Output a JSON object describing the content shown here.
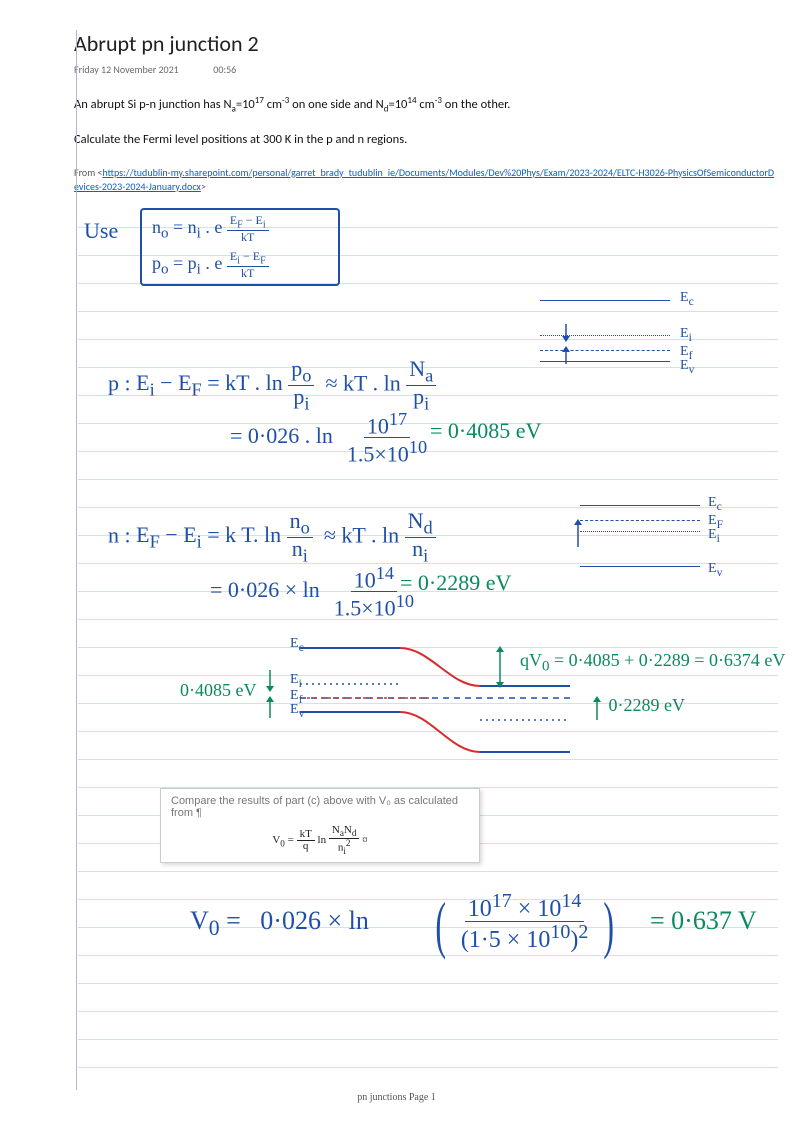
{
  "title": "Abrupt pn junction 2",
  "date": "Friday 12 November 2021",
  "time": "00:56",
  "problem_line1": "An abrupt Si p-n junction has N<sub>a</sub>=10<sup>17</sup> cm<sup>-3</sup> on one side and N<sub>d</sub>=10<sup>14</sup> cm<sup>-3</sup> on the other.",
  "problem_line2": "Calculate the Fermi level positions at 300 K in the p and n regions.",
  "source_prefix": "From <",
  "source_url": "https://tudublin-my.sharepoint.com/personal/garret_brady_tudublin_ie/Documents/Modules/Dev%20Phys/Exam/2023-2024/ELTC-H3026-PhysicsOfSemiconductorDevices-2023-2024-January.docx",
  "source_suffix": ">",
  "hand": {
    "use": "Use",
    "eq_no": "n<sub>o</sub> = n<sub>i</sub> . e",
    "eq_no_exp_num": "E<sub>F</sub> − E<sub>i</sub>",
    "eq_no_exp_den": "kT",
    "eq_po": "p<sub>o</sub> = p<sub>i</sub> . e",
    "eq_po_exp_num": "E<sub>i</sub> − E<sub>F</sub>",
    "eq_po_exp_den": "kT",
    "p_label": "p :",
    "p_eq": "E<sub>i</sub> − E<sub>F</sub> = kT . ln",
    "p_frac1_num": "p<sub>o</sub>",
    "p_frac1_den": "p<sub>i</sub>",
    "approx": "≈ kT . ln",
    "p_frac2_num": "N<sub>a</sub>",
    "p_frac2_den": "p<sub>i</sub>",
    "p_calc": "= 0·026 . ln",
    "p_calc_num": "10<sup>17</sup>",
    "p_calc_den": "1.5×10<sup>10</sup>",
    "p_result": "= 0·4085 eV",
    "n_label": "n :",
    "n_eq": "E<sub>F</sub> − E<sub>i</sub> = k T. ln",
    "n_frac1_num": "n<sub>o</sub>",
    "n_frac1_den": "n<sub>i</sub>",
    "n_frac2_num": "N<sub>d</sub>",
    "n_frac2_den": "n<sub>i</sub>",
    "n_calc": "= 0·026 × ln",
    "n_calc_num": "10<sup>14</sup>",
    "n_calc_den": "1.5×10<sup>10</sup>",
    "n_result": "= 0·2289 eV",
    "band_right_Ec": "E<sub>c</sub>",
    "band_right_Ei": "E<sub>i</sub>",
    "band_right_Ef": "E<sub>f</sub>",
    "band_right_Ev": "E<sub>v</sub>",
    "band2_Ec": "E<sub>c</sub>",
    "band2_Ef": "E<sub>F</sub>",
    "band2_Ei": "E<sub>i</sub>",
    "band2_Ev": "E<sub>v</sub>",
    "qV0": "qV<sub>0</sub> = 0·4085 + 0·2289 = 0·6374 eV",
    "label_04085": "0·4085 eV",
    "label_02289": "0·2289 eV",
    "compare_text": "Compare the results of part (c) above with V₀ as calculated from ¶",
    "compare_formula": "V<sub>0</sub> = <span class='frac'><span class='num'>kT</span><span class='den'>q</span></span> ln <span class='frac'><span class='num'>N<sub>a</sub>N<sub>d</sub></span><span class='den'>n<sub>i</sub><sup>2</sup></span></span> ¤",
    "V0_left": "V<sub>0</sub>  =",
    "V0_mid": "0·026 × ln",
    "V0_num": "10<sup>17</sup> × 10<sup>14</sup>",
    "V0_den": "(1·5 × 10<sup>10</sup>)<sup>2</sup>",
    "V0_result": "= 0·637 V"
  },
  "footer": "pn junctions Page 1",
  "colors": {
    "blue": "#1f4fa8",
    "green": "#0a8a5f",
    "red": "#d92a2a",
    "rule": "#c9e3f7",
    "margin": "#b9b2d6"
  }
}
